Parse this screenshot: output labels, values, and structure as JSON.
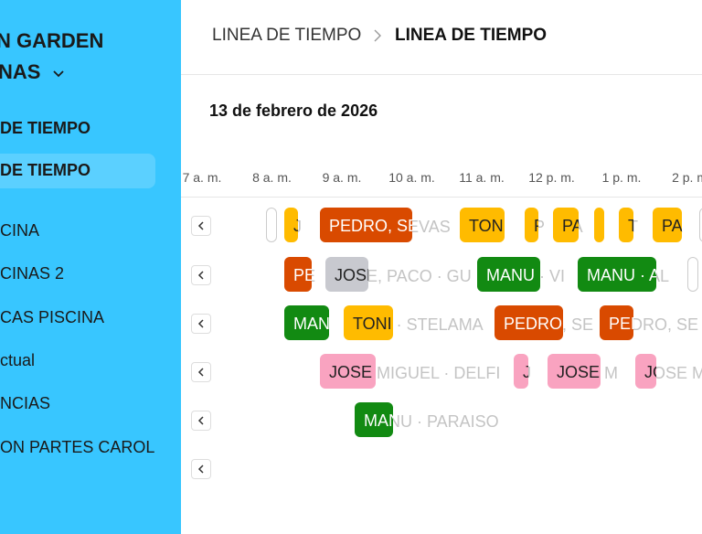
{
  "sidebar": {
    "title_lines": [
      "N GARDEN",
      "NAS"
    ],
    "section": "DE TIEMPO",
    "items": [
      "DE TIEMPO",
      "CINA",
      "CINAS 2",
      "CAS PISCINA",
      "ctual",
      "NCIAS",
      "ON PARTES CAROL"
    ]
  },
  "breadcrumb": [
    "LINEA DE TIEMPO",
    "LINEA DE TIEMPO"
  ],
  "date": "13 de febrero de 2026",
  "timeline": {
    "hours": [
      "7 a. m.",
      "8 a. m.",
      "9 a. m.",
      "10 a. m.",
      "11 a. m.",
      "12 p. m.",
      "1 p. m.",
      "2 p. m."
    ],
    "rows": [
      {
        "events": [
          {
            "color": "#ffffff"
          },
          {
            "label": "J",
            "color": "#ffbb00"
          },
          {
            "label": "PEDRO, SEVAS",
            "color": "#d94a00"
          },
          {
            "label": "TON",
            "color": "#ffbb00"
          },
          {
            "label": "P",
            "color": "#ffbb00"
          },
          {
            "label": "PA",
            "color": "#ffbb00"
          },
          {
            "color": "#ffbb00"
          },
          {
            "label": "T",
            "color": "#ffbb00"
          },
          {
            "label": "PA",
            "color": "#ffbb00"
          },
          {
            "color": "#ffffff"
          }
        ]
      },
      {
        "events": [
          {
            "label": "PE",
            "color": "#d94a00"
          },
          {
            "label": "JOSE, PACO · GU",
            "color": "#c8c9cf"
          },
          {
            "label": "MANU · VI",
            "color": "#128a12"
          },
          {
            "label": "MANU · AL",
            "color": "#128a12"
          },
          {
            "color": "#ffffff"
          }
        ]
      },
      {
        "events": [
          {
            "label": "MAN",
            "color": "#128a12"
          },
          {
            "label": "TONI · STELAMA",
            "color": "#ffbb00"
          },
          {
            "label": "PEDRO, SE",
            "color": "#d94a00"
          },
          {
            "label": "PEDRO, SE",
            "color": "#d94a00"
          }
        ]
      },
      {
        "events": [
          {
            "label": "JOSE MIGUEL · DELFI",
            "color": "#f9a3c0"
          },
          {
            "label": "J",
            "color": "#f9a3c0"
          },
          {
            "label": "JOSE M",
            "color": "#f9a3c0"
          },
          {
            "label": "JOSE M",
            "color": "#f9a3c0"
          }
        ]
      },
      {
        "events": [
          {
            "label": "MANU · PARAISO",
            "color": "#128a12"
          }
        ]
      },
      {
        "events": []
      }
    ]
  }
}
